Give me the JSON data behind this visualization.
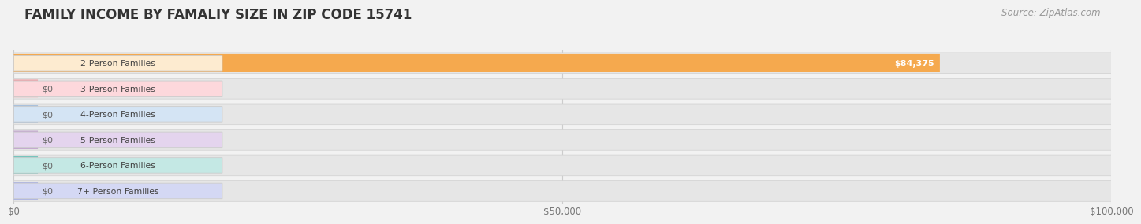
{
  "title": "FAMILY INCOME BY FAMALIY SIZE IN ZIP CODE 15741",
  "source": "Source: ZipAtlas.com",
  "categories": [
    "2-Person Families",
    "3-Person Families",
    "4-Person Families",
    "5-Person Families",
    "6-Person Families",
    "7+ Person Families"
  ],
  "values": [
    84375,
    0,
    0,
    0,
    0,
    0
  ],
  "bar_colors": [
    "#F5A94E",
    "#F2A0A6",
    "#A8C0DC",
    "#C4A8D0",
    "#72C4BC",
    "#ACB4E4"
  ],
  "label_pill_colors": [
    "#FDEBD0",
    "#FDD8DC",
    "#D4E4F4",
    "#E4D4EE",
    "#C4E8E4",
    "#D4D8F4"
  ],
  "xlim": [
    0,
    100000
  ],
  "xticks": [
    0,
    50000,
    100000
  ],
  "xtick_labels": [
    "$0",
    "$50,000",
    "$100,000"
  ],
  "value_labels": [
    "$84,375",
    "$0",
    "$0",
    "$0",
    "$0",
    "$0"
  ],
  "bg_color": "#f2f2f2",
  "row_bg_light": "#f9f9f9",
  "row_bg_dark": "#eeeeee",
  "title_fontsize": 12,
  "source_fontsize": 8.5,
  "bar_height": 0.65
}
